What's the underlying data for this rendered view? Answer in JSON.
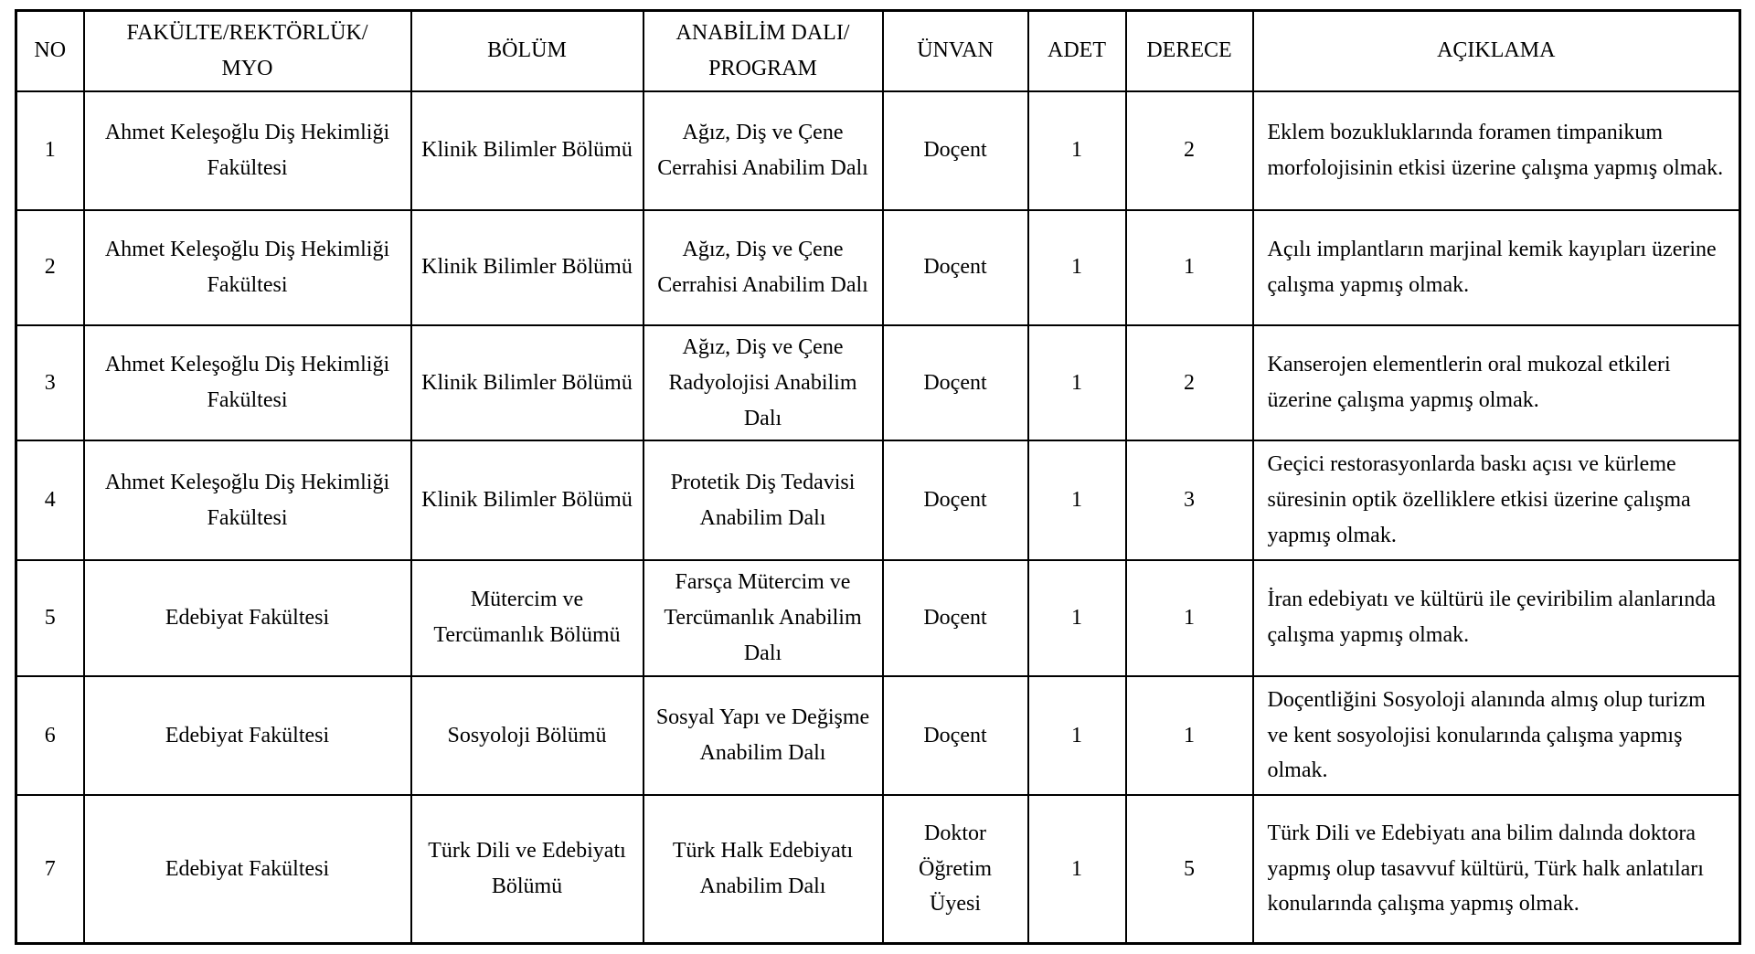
{
  "table": {
    "headers": [
      "NO",
      "FAKÜLTE/REKTÖRLÜK/\nMYO",
      "BÖLÜM",
      "ANABİLİM DALI/\nPROGRAM",
      "ÜNVAN",
      "ADET",
      "DERECE",
      "AÇIKLAMA"
    ],
    "rows": [
      {
        "no": "1",
        "faculty": "Ahmet Keleşoğlu Diş Hekimliği Fakültesi",
        "department": "Klinik Bilimler Bölümü",
        "program": "Ağız, Diş ve Çene Cerrahisi Anabilim Dalı",
        "title": "Doçent",
        "count": "1",
        "degree": "2",
        "description": "Eklem bozukluklarında foramen timpanikum morfolojisinin etkisi üzerine çalışma yapmış olmak."
      },
      {
        "no": "2",
        "faculty": "Ahmet Keleşoğlu Diş Hekimliği Fakültesi",
        "department": "Klinik Bilimler Bölümü",
        "program": "Ağız, Diş ve Çene Cerrahisi Anabilim Dalı",
        "title": "Doçent",
        "count": "1",
        "degree": "1",
        "description": "Açılı implantların marjinal kemik kayıpları üzerine çalışma yapmış olmak."
      },
      {
        "no": "3",
        "faculty": "Ahmet Keleşoğlu Diş Hekimliği Fakültesi",
        "department": "Klinik Bilimler Bölümü",
        "program": "Ağız, Diş ve Çene Radyolojisi Anabilim Dalı",
        "title": "Doçent",
        "count": "1",
        "degree": "2",
        "description": "Kanserojen elementlerin oral mukozal etkileri üzerine çalışma yapmış olmak."
      },
      {
        "no": "4",
        "faculty": "Ahmet Keleşoğlu Diş Hekimliği Fakültesi",
        "department": "Klinik Bilimler Bölümü",
        "program": "Protetik Diş Tedavisi Anabilim Dalı",
        "title": "Doçent",
        "count": "1",
        "degree": "3",
        "description": "Geçici restorasyonlarda baskı açısı ve kürleme süresinin optik özelliklere etkisi üzerine çalışma yapmış olmak."
      },
      {
        "no": "5",
        "faculty": "Edebiyat Fakültesi",
        "department": "Mütercim ve Tercümanlık Bölümü",
        "program": "Farsça Mütercim ve Tercümanlık Anabilim Dalı",
        "title": "Doçent",
        "count": "1",
        "degree": "1",
        "description": "İran edebiyatı ve kültürü ile çeviribilim alanlarında çalışma yapmış olmak."
      },
      {
        "no": "6",
        "faculty": "Edebiyat Fakültesi",
        "department": "Sosyoloji Bölümü",
        "program": "Sosyal Yapı ve Değişme Anabilim Dalı",
        "title": "Doçent",
        "count": "1",
        "degree": "1",
        "description": "Doçentliğini Sosyoloji alanında almış olup turizm ve kent sosyolojisi konularında çalışma yapmış olmak."
      },
      {
        "no": "7",
        "faculty": "Edebiyat Fakültesi",
        "department": "Türk Dili ve Edebiyatı Bölümü",
        "program": "Türk Halk Edebiyatı Anabilim Dalı",
        "title": "Doktor Öğretim Üyesi",
        "count": "1",
        "degree": "5",
        "description": "Türk Dili ve Edebiyatı ana bilim dalında doktora yapmış olup tasavvuf kültürü, Türk halk anlatıları konularında çalışma yapmış olmak."
      }
    ]
  }
}
